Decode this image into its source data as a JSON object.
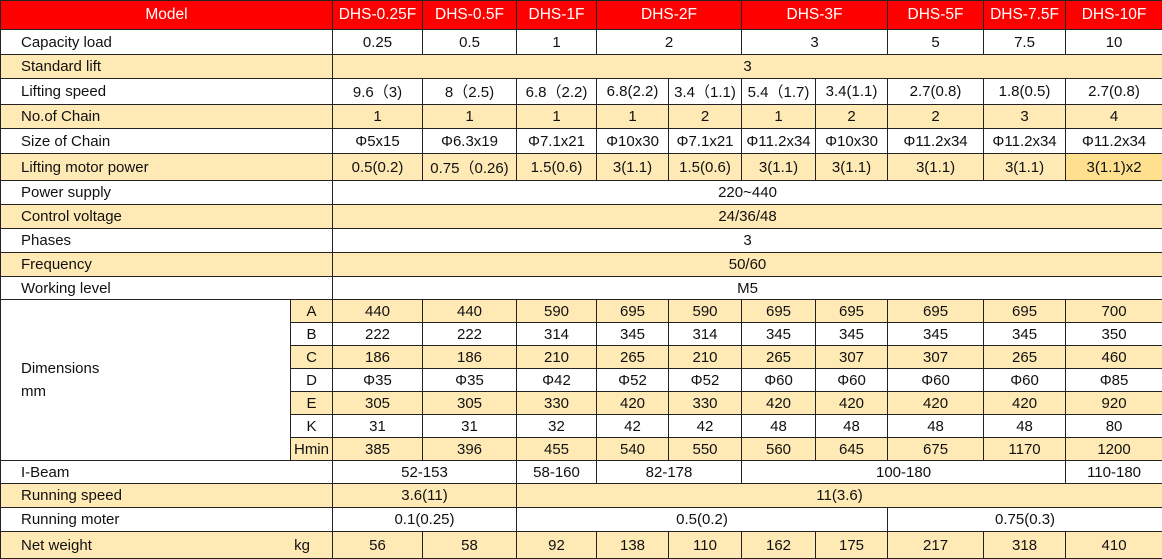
{
  "colors": {
    "header_bg": "#FF0000",
    "header_text": "#FFFFFF",
    "highlight_row": "#FFEAB5",
    "emphasis_cell": "#FFE08F"
  },
  "header": {
    "label": "Model",
    "models": [
      {
        "v": "DHS-0.25F",
        "span": 1
      },
      {
        "v": "DHS-0.5F",
        "span": 1
      },
      {
        "v": "DHS-1F",
        "span": 1
      },
      {
        "v": "DHS-2F",
        "span": 2
      },
      {
        "v": "DHS-3F",
        "span": 2
      },
      {
        "v": "DHS-5F",
        "span": 1
      },
      {
        "v": "DHS-7.5F",
        "span": 1
      },
      {
        "v": "DHS-10F",
        "span": 1
      }
    ]
  },
  "rows_top": [
    {
      "label": "Capacity load",
      "highlight": false,
      "cells": [
        {
          "v": "0.25",
          "span": 1
        },
        {
          "v": "0.5",
          "span": 1
        },
        {
          "v": "1",
          "span": 1
        },
        {
          "v": "2",
          "span": 2
        },
        {
          "v": "3",
          "span": 2
        },
        {
          "v": "5",
          "span": 1
        },
        {
          "v": "7.5",
          "span": 1
        },
        {
          "v": "10",
          "span": 1
        }
      ]
    },
    {
      "label": "Standard lift",
      "highlight": true,
      "cells": [
        {
          "v": "3",
          "span": 10
        }
      ]
    },
    {
      "label": "Lifting speed",
      "highlight": false,
      "cells": [
        {
          "v": "9.6（3)",
          "span": 1
        },
        {
          "v": "8（2.5)",
          "span": 1
        },
        {
          "v": "6.8（2.2)",
          "span": 1
        },
        {
          "v": "6.8(2.2)",
          "span": 1
        },
        {
          "v": "3.4（1.1)",
          "span": 1
        },
        {
          "v": "5.4（1.7)",
          "span": 1
        },
        {
          "v": "3.4(1.1)",
          "span": 1
        },
        {
          "v": "2.7(0.8)",
          "span": 1
        },
        {
          "v": "1.8(0.5)",
          "span": 1
        },
        {
          "v": "2.7(0.8)",
          "span": 1
        }
      ]
    },
    {
      "label": "No.of Chain",
      "highlight": true,
      "cells": [
        {
          "v": "1",
          "span": 1
        },
        {
          "v": "1",
          "span": 1
        },
        {
          "v": "1",
          "span": 1
        },
        {
          "v": "1",
          "span": 1
        },
        {
          "v": "2",
          "span": 1
        },
        {
          "v": "1",
          "span": 1
        },
        {
          "v": "2",
          "span": 1
        },
        {
          "v": "2",
          "span": 1
        },
        {
          "v": "3",
          "span": 1
        },
        {
          "v": "4",
          "span": 1
        }
      ]
    },
    {
      "label": "Size of Chain",
      "highlight": false,
      "cells": [
        {
          "v": "Φ5x15",
          "span": 1
        },
        {
          "v": "Φ6.3x19",
          "span": 1
        },
        {
          "v": "Φ7.1x21",
          "span": 1
        },
        {
          "v": "Φ10x30",
          "span": 1
        },
        {
          "v": "Φ7.1x21",
          "span": 1
        },
        {
          "v": "Φ11.2x34",
          "span": 1
        },
        {
          "v": "Φ10x30",
          "span": 1
        },
        {
          "v": "Φ11.2x34",
          "span": 1
        },
        {
          "v": "Φ11.2x34",
          "span": 1
        },
        {
          "v": "Φ11.2x34",
          "span": 1
        }
      ]
    },
    {
      "label": "Lifting motor power",
      "highlight": true,
      "cells": [
        {
          "v": "0.5(0.2)",
          "span": 1
        },
        {
          "v": "0.75（0.26)",
          "span": 1
        },
        {
          "v": "1.5(0.6)",
          "span": 1
        },
        {
          "v": "3(1.1)",
          "span": 1
        },
        {
          "v": "1.5(0.6)",
          "span": 1
        },
        {
          "v": "3(1.1)",
          "span": 1
        },
        {
          "v": "3(1.1)",
          "span": 1
        },
        {
          "v": "3(1.1)",
          "span": 1
        },
        {
          "v": "3(1.1)",
          "span": 1
        },
        {
          "v": "3(1.1)x2",
          "span": 1,
          "emphasis": true
        }
      ]
    },
    {
      "label": "Power supply",
      "highlight": false,
      "cells": [
        {
          "v": "220~440",
          "span": 10
        }
      ]
    },
    {
      "label": "Control voltage",
      "highlight": true,
      "cells": [
        {
          "v": "24/36/48",
          "span": 10
        }
      ]
    },
    {
      "label": "Phases",
      "highlight": false,
      "cells": [
        {
          "v": "3",
          "span": 10
        }
      ]
    },
    {
      "label": "Frequency",
      "highlight": true,
      "cells": [
        {
          "v": "50/60",
          "span": 10
        }
      ]
    },
    {
      "label": "Working level",
      "highlight": false,
      "cells": [
        {
          "v": "M5",
          "span": 10
        }
      ]
    }
  ],
  "dimensions": {
    "label_lines": [
      "Dimensions",
      "mm"
    ],
    "rows": [
      {
        "key": "A",
        "highlight": true,
        "values": [
          "440",
          "440",
          "590",
          "695",
          "590",
          "695",
          "695",
          "695",
          "695",
          "700"
        ]
      },
      {
        "key": "B",
        "highlight": false,
        "values": [
          "222",
          "222",
          "314",
          "345",
          "314",
          "345",
          "345",
          "345",
          "345",
          "350"
        ]
      },
      {
        "key": "C",
        "highlight": true,
        "values": [
          "186",
          "186",
          "210",
          "265",
          "210",
          "265",
          "307",
          "307",
          "265",
          "460"
        ]
      },
      {
        "key": "D",
        "highlight": false,
        "values": [
          "Φ35",
          "Φ35",
          "Φ42",
          "Φ52",
          "Φ52",
          "Φ60",
          "Φ60",
          "Φ60",
          "Φ60",
          "Φ85"
        ]
      },
      {
        "key": "E",
        "highlight": true,
        "values": [
          "305",
          "305",
          "330",
          "420",
          "330",
          "420",
          "420",
          "420",
          "420",
          "920"
        ]
      },
      {
        "key": "K",
        "highlight": false,
        "values": [
          "31",
          "31",
          "32",
          "42",
          "42",
          "48",
          "48",
          "48",
          "48",
          "80"
        ]
      },
      {
        "key": "Hmin",
        "highlight": true,
        "values": [
          "385",
          "396",
          "455",
          "540",
          "550",
          "560",
          "645",
          "675",
          "1170",
          "1200"
        ]
      }
    ]
  },
  "rows_bottom": [
    {
      "label": "I-Beam",
      "highlight": false,
      "cells": [
        {
          "v": "52-153",
          "span": 2
        },
        {
          "v": "58-160",
          "span": 1
        },
        {
          "v": "82-178",
          "span": 2
        },
        {
          "v": "100-180",
          "span": 4
        },
        {
          "v": "110-180",
          "span": 1
        }
      ]
    },
    {
      "label": "Running speed",
      "highlight": true,
      "cells": [
        {
          "v": "3.6(11)",
          "span": 2
        },
        {
          "v": "11(3.6)",
          "span": 8
        }
      ]
    },
    {
      "label": "Running moter",
      "highlight": false,
      "cells": [
        {
          "v": "0.1(0.25)",
          "span": 2
        },
        {
          "v": "0.5(0.2)",
          "span": 5
        },
        {
          "v": "0.75(0.3)",
          "span": 3
        }
      ]
    }
  ],
  "net_weight": {
    "label": "Net weight",
    "unit": "kg",
    "values": [
      "56",
      "58",
      "92",
      "138",
      "110",
      "162",
      "175",
      "217",
      "318",
      "410"
    ]
  }
}
